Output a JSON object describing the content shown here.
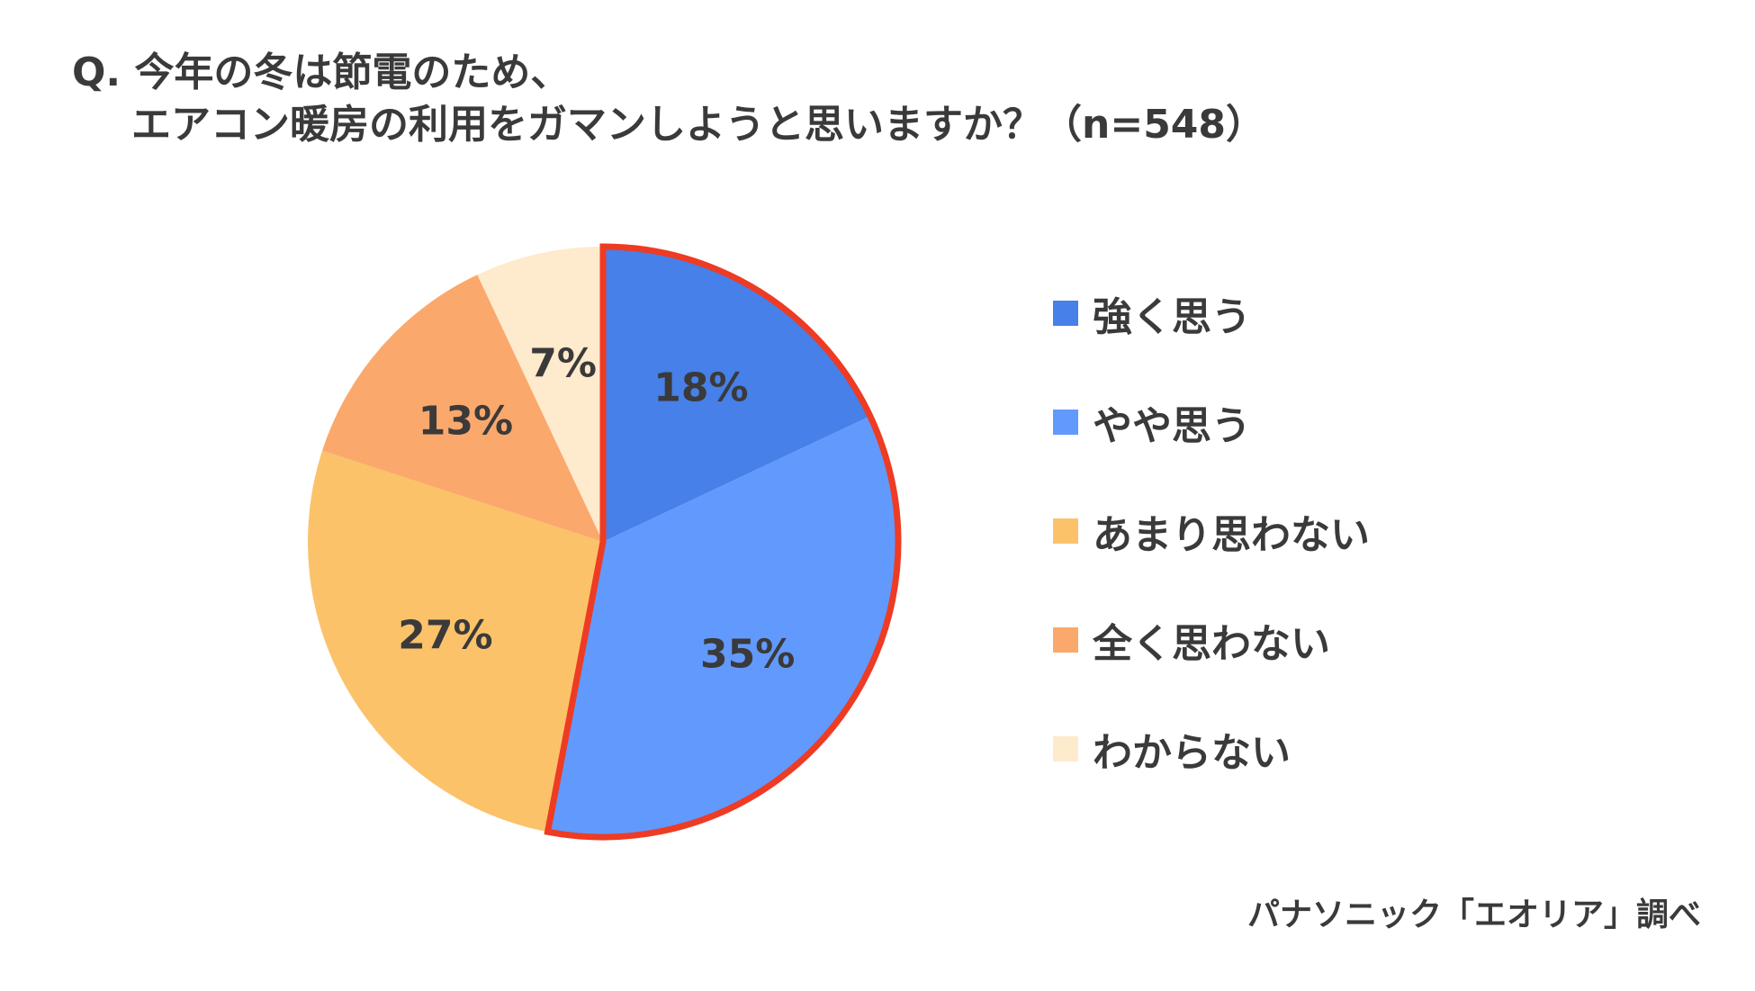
{
  "title": {
    "line1": "Q. 今年の冬は節電のため、",
    "line2": "エアコン暖房の利用をガマンしようと思いますか？（n=548）"
  },
  "source": "パナソニック「エオリア」調べ",
  "highlight_color": "#EE3B24",
  "chart_data": {
    "type": "pie",
    "title": "Q. 今年の冬は節電のため、エアコン暖房の利用をガマンしようと思いますか？（n=548）",
    "n": 548,
    "categories": [
      "強く思う",
      "やや思う",
      "あまり思わない",
      "全く思わない",
      "わからない"
    ],
    "values": [
      18,
      35,
      27,
      13,
      7
    ],
    "value_labels": [
      "18%",
      "35%",
      "27%",
      "13%",
      "7%"
    ],
    "colors": [
      "#4680E8",
      "#6299FC",
      "#FCC26A",
      "#FBA86C",
      "#FEEACC"
    ],
    "start_angle": "top",
    "direction": "clockwise",
    "highlighted_slices": [
      0,
      1
    ],
    "legend_position": "right"
  }
}
